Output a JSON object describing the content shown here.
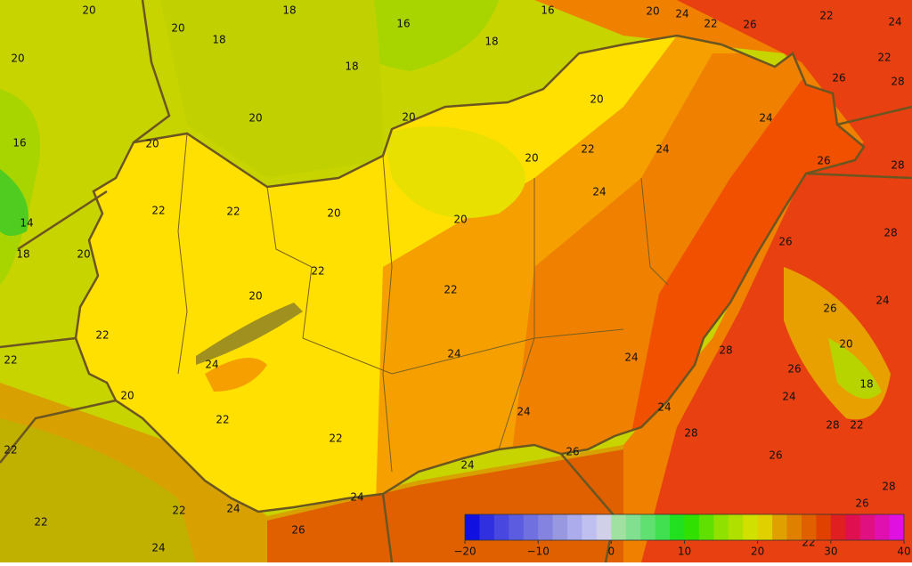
{
  "map": {
    "contour_labels": [
      "20",
      "20",
      "18",
      "18",
      "16",
      "16",
      "18",
      "18",
      "20",
      "24",
      "22",
      "26",
      "22",
      "24",
      "22",
      "26",
      "28",
      "20",
      "20",
      "20",
      "20",
      "16",
      "14",
      "18",
      "20",
      "22",
      "22",
      "20",
      "20",
      "22",
      "20",
      "24",
      "24",
      "26",
      "28",
      "24",
      "20",
      "26",
      "28",
      "22",
      "20",
      "22",
      "26",
      "24",
      "22",
      "20",
      "22",
      "24",
      "24",
      "24",
      "28",
      "26",
      "18",
      "24",
      "20",
      "22",
      "24",
      "24",
      "28",
      "22",
      "28",
      "22",
      "22",
      "26",
      "26",
      "24",
      "28",
      "24",
      "24",
      "22",
      "26",
      "22",
      "26",
      "24",
      "22"
    ]
  },
  "colorbar": {
    "colors": [
      "#1010e0",
      "#3030e0",
      "#4848e0",
      "#5c5ce0",
      "#7070e0",
      "#8484e0",
      "#9898e0",
      "#acacec",
      "#c0c0f0",
      "#d0d0e8",
      "#a0e0a0",
      "#80e090",
      "#60e070",
      "#40e050",
      "#20e020",
      "#30e000",
      "#60e000",
      "#90e000",
      "#b0e000",
      "#d0e000",
      "#e0d000",
      "#e0a000",
      "#e08000",
      "#e06000",
      "#e04000",
      "#e02020",
      "#e01050",
      "#e01080",
      "#e010b0",
      "#e010e0"
    ],
    "ticks": [
      "−20",
      "−10",
      "0",
      "10",
      "20",
      "30",
      "40"
    ]
  }
}
